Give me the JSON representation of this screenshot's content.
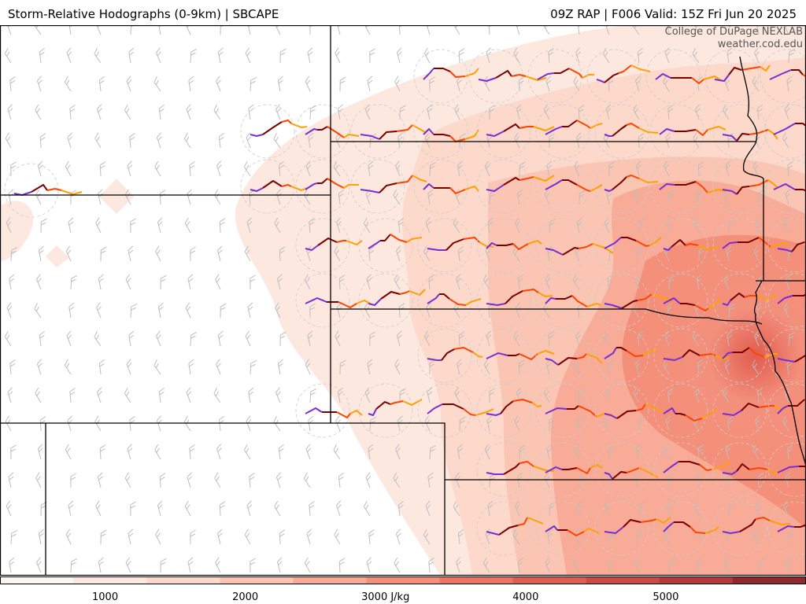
{
  "header": {
    "title_left": "Storm-Relative Hodographs (0-9km) | SBCAPE",
    "title_right": "09Z RAP | F006 Valid: 15Z Fri Jun 20 2025"
  },
  "credit": {
    "line1": "College of DuPage NEXLAB",
    "line2": "weather.cod.edu"
  },
  "colorbar": {
    "unit": "J/kg",
    "ticks": [
      {
        "label": "1000",
        "value": 1000
      },
      {
        "label": "2000",
        "value": 2000
      },
      {
        "label": "3000 J/kg",
        "value": 3000
      },
      {
        "label": "4000",
        "value": 4000
      },
      {
        "label": "5000",
        "value": 5000
      }
    ],
    "range": [
      250,
      6000
    ],
    "colors": [
      "#fef5f1",
      "#fde8df",
      "#fcd9cb",
      "#fbc5b3",
      "#f8ab96",
      "#f48f7a",
      "#ec7563",
      "#de5f52",
      "#cc4a44",
      "#b23b3a",
      "#8e2a2f"
    ]
  },
  "map": {
    "field": "SBCAPE",
    "hodograph_colors": [
      "#7a2dd1",
      "#7a0000",
      "#ff4400",
      "#ffa000"
    ],
    "barb_color": "#bdbdbd",
    "border_color": "#000000"
  }
}
